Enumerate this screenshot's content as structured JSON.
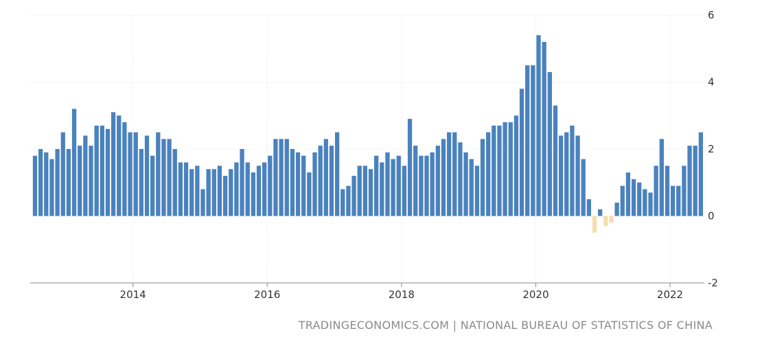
{
  "source_text": "TRADINGECONOMICS.COM | NATIONAL BUREAU OF STATISTICS OF CHINA",
  "colors": {
    "positive": "#4a82bd",
    "negative": "#f5deb0",
    "grid": "#e2e2e2",
    "axis": "#888888"
  },
  "chart_data": {
    "type": "bar",
    "title": "",
    "xlabel": "",
    "ylabel": "",
    "ylim": [
      -2,
      6
    ],
    "y_ticks": [
      "6",
      "4",
      "2",
      "0",
      "-2"
    ],
    "x_ticks": [
      "2014",
      "2016",
      "2018",
      "2020",
      "2022"
    ],
    "x_start": "2012-07",
    "x_end": "2022-06",
    "grid": true,
    "legend": "none",
    "series": [
      {
        "months": [
          "2012-07",
          "2012-08",
          "2012-09",
          "2012-10",
          "2012-11",
          "2012-12",
          "2013-01",
          "2013-02",
          "2013-03",
          "2013-04",
          "2013-05",
          "2013-06",
          "2013-07",
          "2013-08",
          "2013-09",
          "2013-10",
          "2013-11",
          "2013-12",
          "2014-01",
          "2014-02",
          "2014-03",
          "2014-04",
          "2014-05",
          "2014-06",
          "2014-07",
          "2014-08",
          "2014-09",
          "2014-10",
          "2014-11",
          "2014-12",
          "2015-01",
          "2015-02",
          "2015-03",
          "2015-04",
          "2015-05",
          "2015-06",
          "2015-07",
          "2015-08",
          "2015-09",
          "2015-10",
          "2015-11",
          "2015-12",
          "2016-01",
          "2016-02",
          "2016-03",
          "2016-04",
          "2016-05",
          "2016-06",
          "2016-07",
          "2016-08",
          "2016-09",
          "2016-10",
          "2016-11",
          "2016-12",
          "2017-01",
          "2017-02",
          "2017-03",
          "2017-04",
          "2017-05",
          "2017-06",
          "2017-07",
          "2017-08",
          "2017-09",
          "2017-10",
          "2017-11",
          "2017-12",
          "2018-01",
          "2018-02",
          "2018-03",
          "2018-04",
          "2018-05",
          "2018-06",
          "2018-07",
          "2018-08",
          "2018-09",
          "2018-10",
          "2018-11",
          "2018-12",
          "2019-01",
          "2019-02",
          "2019-03",
          "2019-04",
          "2019-05",
          "2019-06",
          "2019-07",
          "2019-08",
          "2019-09",
          "2019-10",
          "2019-11",
          "2019-12",
          "2020-01",
          "2020-02",
          "2020-03",
          "2020-04",
          "2020-05",
          "2020-06",
          "2020-07",
          "2020-08",
          "2020-09",
          "2020-10",
          "2020-11",
          "2020-12",
          "2021-01",
          "2021-02",
          "2021-03",
          "2021-04",
          "2021-05",
          "2021-06",
          "2021-07",
          "2021-08",
          "2021-09",
          "2021-10",
          "2021-11",
          "2021-12",
          "2022-01",
          "2022-02",
          "2022-03",
          "2022-04",
          "2022-05",
          "2022-06"
        ],
        "values": [
          1.8,
          2.0,
          1.9,
          1.7,
          2.0,
          2.5,
          2.0,
          3.2,
          2.1,
          2.4,
          2.1,
          2.7,
          2.7,
          2.6,
          3.1,
          3.0,
          2.8,
          2.5,
          2.5,
          2.0,
          2.4,
          1.8,
          2.5,
          2.3,
          2.3,
          2.0,
          1.6,
          1.6,
          1.4,
          1.5,
          0.8,
          1.4,
          1.4,
          1.5,
          1.2,
          1.4,
          1.6,
          2.0,
          1.6,
          1.3,
          1.5,
          1.6,
          1.8,
          2.3,
          2.3,
          2.3,
          2.0,
          1.9,
          1.8,
          1.3,
          1.9,
          2.1,
          2.3,
          2.1,
          2.5,
          0.8,
          0.9,
          1.2,
          1.5,
          1.5,
          1.4,
          1.8,
          1.6,
          1.9,
          1.7,
          1.8,
          1.5,
          2.9,
          2.1,
          1.8,
          1.8,
          1.9,
          2.1,
          2.3,
          2.5,
          2.5,
          2.2,
          1.9,
          1.7,
          1.5,
          2.3,
          2.5,
          2.7,
          2.7,
          2.8,
          2.8,
          3.0,
          3.8,
          4.5,
          4.5,
          5.4,
          5.2,
          4.3,
          3.3,
          2.4,
          2.5,
          2.7,
          2.4,
          1.7,
          0.5,
          -0.5,
          0.2,
          -0.3,
          -0.2,
          0.4,
          0.9,
          1.3,
          1.1,
          1.0,
          0.8,
          0.7,
          1.5,
          2.3,
          1.5,
          0.9,
          0.9,
          1.5,
          2.1,
          2.1,
          2.5
        ]
      }
    ]
  }
}
